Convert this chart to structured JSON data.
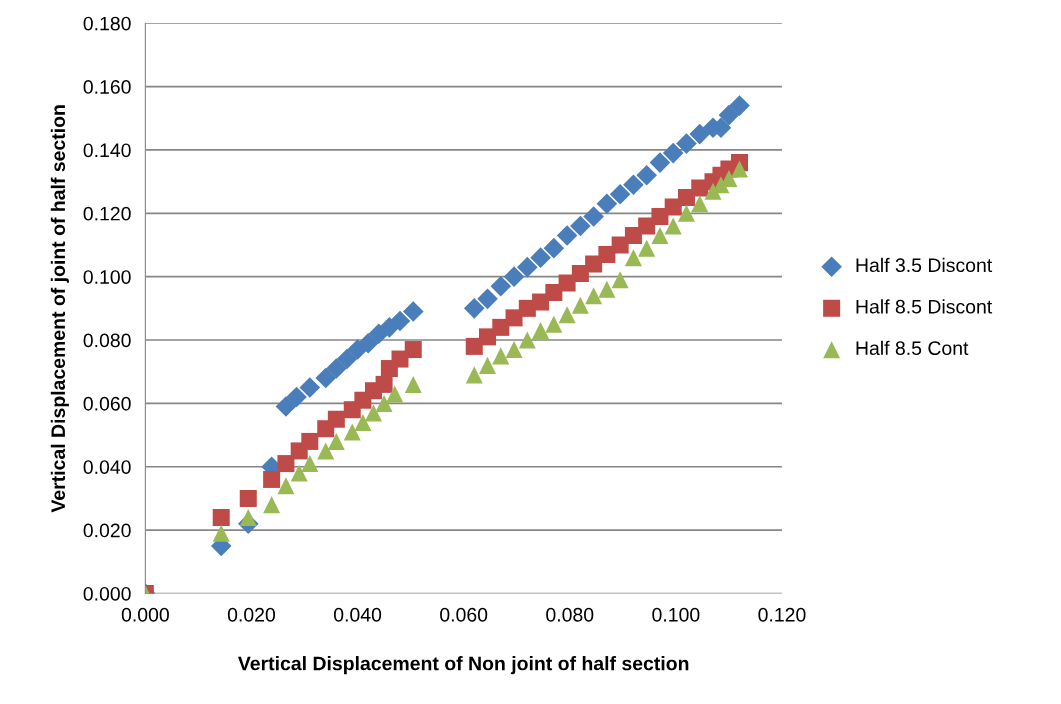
{
  "chart_data": {
    "type": "scatter",
    "xlabel": "Vertical Displacement of Non joint of half section",
    "ylabel": "Vertical Displacement of joint of half section",
    "xlim": [
      0,
      0.12
    ],
    "ylim": [
      0,
      0.18
    ],
    "xticks": [
      {
        "value": 0,
        "label": "0.000"
      },
      {
        "value": 0.02,
        "label": "0.020"
      },
      {
        "value": 0.04,
        "label": "0.040"
      },
      {
        "value": 0.06,
        "label": "0.060"
      },
      {
        "value": 0.08,
        "label": "0.080"
      },
      {
        "value": 0.1,
        "label": "0.100"
      },
      {
        "value": 0.12,
        "label": "0.120"
      }
    ],
    "yticks": [
      {
        "value": 0,
        "label": "0.000"
      },
      {
        "value": 0.02,
        "label": "0.020"
      },
      {
        "value": 0.04,
        "label": "0.040"
      },
      {
        "value": 0.06,
        "label": "0.060"
      },
      {
        "value": 0.08,
        "label": "0.080"
      },
      {
        "value": 0.1,
        "label": "0.100"
      },
      {
        "value": 0.12,
        "label": "0.120"
      },
      {
        "value": 0.14,
        "label": "0.140"
      },
      {
        "value": 0.16,
        "label": "0.160"
      },
      {
        "value": 0.18,
        "label": "0.180"
      }
    ],
    "grid": "y",
    "legend": "right",
    "series": [
      {
        "name": "Half 3.5 Discont",
        "color": "#4a7ebb",
        "marker": "diamond",
        "x": [
          0,
          0.0143,
          0.0194,
          0.0238,
          0.0265,
          0.0285,
          0.031,
          0.034,
          0.036,
          0.038,
          0.04,
          0.042,
          0.044,
          0.046,
          0.048,
          0.0505,
          0.062,
          0.0645,
          0.067,
          0.0695,
          0.072,
          0.0745,
          0.077,
          0.0795,
          0.082,
          0.0845,
          0.087,
          0.0895,
          0.092,
          0.0945,
          0.097,
          0.0995,
          0.102,
          0.1045,
          0.107,
          0.1085,
          0.11,
          0.112
        ],
        "values": [
          0,
          0.015,
          0.022,
          0.04,
          0.059,
          0.062,
          0.065,
          0.068,
          0.071,
          0.074,
          0.077,
          0.079,
          0.082,
          0.084,
          0.086,
          0.089,
          0.09,
          0.093,
          0.097,
          0.1,
          0.103,
          0.106,
          0.109,
          0.113,
          0.116,
          0.119,
          0.123,
          0.126,
          0.129,
          0.132,
          0.136,
          0.139,
          0.142,
          0.145,
          0.147,
          0.147,
          0.151,
          0.154
        ]
      },
      {
        "name": "Half 8.5 Discont",
        "color": "#be4b48",
        "marker": "square",
        "x": [
          0,
          0.0143,
          0.0194,
          0.0238,
          0.0265,
          0.029,
          0.031,
          0.034,
          0.036,
          0.039,
          0.041,
          0.043,
          0.045,
          0.046,
          0.048,
          0.0505,
          0.062,
          0.0645,
          0.067,
          0.0695,
          0.072,
          0.0745,
          0.077,
          0.0795,
          0.082,
          0.0845,
          0.087,
          0.0895,
          0.092,
          0.0945,
          0.097,
          0.0995,
          0.102,
          0.1045,
          0.107,
          0.1085,
          0.11,
          0.112
        ],
        "values": [
          0,
          0.024,
          0.03,
          0.036,
          0.041,
          0.045,
          0.048,
          0.052,
          0.055,
          0.058,
          0.061,
          0.064,
          0.066,
          0.071,
          0.074,
          0.077,
          0.078,
          0.081,
          0.084,
          0.087,
          0.09,
          0.092,
          0.095,
          0.098,
          0.101,
          0.104,
          0.107,
          0.11,
          0.113,
          0.116,
          0.119,
          0.122,
          0.125,
          0.128,
          0.13,
          0.132,
          0.134,
          0.136
        ]
      },
      {
        "name": "Half 8.5 Cont",
        "color": "#98b954",
        "marker": "triangle",
        "x": [
          0,
          0.0143,
          0.0194,
          0.0238,
          0.0265,
          0.029,
          0.031,
          0.034,
          0.036,
          0.039,
          0.041,
          0.043,
          0.045,
          0.047,
          0.0505,
          0.062,
          0.0645,
          0.067,
          0.0695,
          0.072,
          0.0745,
          0.077,
          0.0795,
          0.082,
          0.0845,
          0.087,
          0.0895,
          0.092,
          0.0945,
          0.097,
          0.0995,
          0.102,
          0.1045,
          0.107,
          0.1085,
          0.11,
          0.112
        ],
        "values": [
          0,
          0.019,
          0.024,
          0.028,
          0.034,
          0.038,
          0.041,
          0.045,
          0.048,
          0.051,
          0.054,
          0.057,
          0.06,
          0.063,
          0.066,
          0.069,
          0.072,
          0.075,
          0.077,
          0.08,
          0.083,
          0.085,
          0.088,
          0.091,
          0.094,
          0.096,
          0.099,
          0.106,
          0.109,
          0.113,
          0.116,
          0.12,
          0.123,
          0.127,
          0.129,
          0.131,
          0.134
        ]
      }
    ]
  }
}
